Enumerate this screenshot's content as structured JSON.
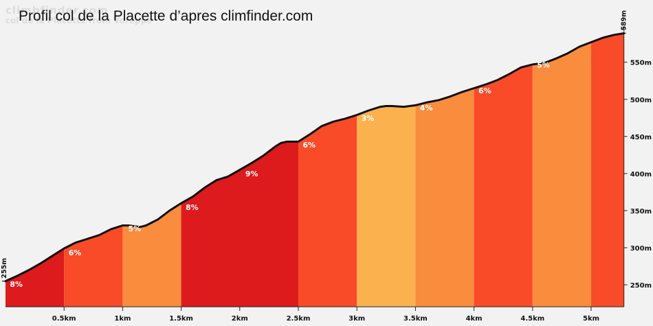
{
  "title": "Profil col de la Placette  d’apres climfinder.com",
  "watermark": {
    "line1": "climbfinder.com",
    "line2": "col de la Placette from Voreppe"
  },
  "chart_data": {
    "type": "area",
    "title": "Profil col de la Placette  d’apres climfinder.com",
    "xlabel": "",
    "ylabel": "",
    "xlim": [
      0,
      5.3
    ],
    "ylim": [
      220,
      597
    ],
    "x_ticks": [
      {
        "value": 0.5,
        "label": "0.5km"
      },
      {
        "value": 1.0,
        "label": "1km"
      },
      {
        "value": 1.5,
        "label": "1.5km"
      },
      {
        "value": 2.0,
        "label": "2km"
      },
      {
        "value": 2.5,
        "label": "2.5km"
      },
      {
        "value": 3.0,
        "label": "3km"
      },
      {
        "value": 3.5,
        "label": "3.5km"
      },
      {
        "value": 4.0,
        "label": "4km"
      },
      {
        "value": 4.5,
        "label": "4.5km"
      },
      {
        "value": 5.0,
        "label": "5km"
      }
    ],
    "y_ticks": [
      {
        "value": 250,
        "label": "250m"
      },
      {
        "value": 300,
        "label": "300m"
      },
      {
        "value": 350,
        "label": "350m"
      },
      {
        "value": 400,
        "label": "400m"
      },
      {
        "value": 450,
        "label": "450m"
      },
      {
        "value": 500,
        "label": "500m"
      },
      {
        "value": 550,
        "label": "550m"
      }
    ],
    "start_elevation": {
      "value": 255,
      "label": "255m"
    },
    "end_elevation": {
      "value": 589,
      "label": "589m"
    },
    "profile": [
      [
        0.0,
        255
      ],
      [
        0.1,
        262
      ],
      [
        0.2,
        270
      ],
      [
        0.3,
        279
      ],
      [
        0.4,
        289
      ],
      [
        0.5,
        299
      ],
      [
        0.6,
        307
      ],
      [
        0.7,
        312
      ],
      [
        0.8,
        317
      ],
      [
        0.9,
        325
      ],
      [
        1.0,
        330
      ],
      [
        1.05,
        330
      ],
      [
        1.1,
        329
      ],
      [
        1.15,
        328
      ],
      [
        1.2,
        330
      ],
      [
        1.3,
        338
      ],
      [
        1.4,
        350
      ],
      [
        1.5,
        360
      ],
      [
        1.6,
        369
      ],
      [
        1.7,
        381
      ],
      [
        1.8,
        391
      ],
      [
        1.9,
        396
      ],
      [
        2.0,
        405
      ],
      [
        2.1,
        414
      ],
      [
        2.2,
        424
      ],
      [
        2.3,
        436
      ],
      [
        2.35,
        441
      ],
      [
        2.4,
        443
      ],
      [
        2.5,
        443
      ],
      [
        2.6,
        453
      ],
      [
        2.7,
        464
      ],
      [
        2.8,
        470
      ],
      [
        2.9,
        474
      ],
      [
        3.0,
        479
      ],
      [
        3.1,
        485
      ],
      [
        3.2,
        490
      ],
      [
        3.25,
        491
      ],
      [
        3.3,
        491
      ],
      [
        3.4,
        490
      ],
      [
        3.5,
        492
      ],
      [
        3.6,
        496
      ],
      [
        3.7,
        499
      ],
      [
        3.8,
        504
      ],
      [
        3.9,
        510
      ],
      [
        4.0,
        515
      ],
      [
        4.1,
        520
      ],
      [
        4.2,
        526
      ],
      [
        4.3,
        534
      ],
      [
        4.4,
        543
      ],
      [
        4.5,
        547
      ],
      [
        4.6,
        549
      ],
      [
        4.7,
        555
      ],
      [
        4.8,
        562
      ],
      [
        4.9,
        571
      ],
      [
        5.0,
        577
      ],
      [
        5.1,
        583
      ],
      [
        5.2,
        587
      ],
      [
        5.28,
        589
      ]
    ],
    "segments": [
      {
        "start": 0.0,
        "end": 0.5,
        "grade": "8%",
        "color": "#dd1a1c"
      },
      {
        "start": 0.5,
        "end": 1.0,
        "grade": "6%",
        "color": "#f94b28"
      },
      {
        "start": 1.0,
        "end": 1.5,
        "grade": "5%",
        "color": "#fa8c3e"
      },
      {
        "start": 1.5,
        "end": 2.5,
        "grade": "8%",
        "color": "#dd1a1c"
      },
      {
        "start": 2.5,
        "end": 3.0,
        "grade": "6%",
        "color": "#f94b28"
      },
      {
        "start": 3.0,
        "end": 3.5,
        "grade": "3%",
        "color": "#fbb24e"
      },
      {
        "start": 3.5,
        "end": 4.0,
        "grade": "4%",
        "color": "#fa8c3e"
      },
      {
        "start": 4.0,
        "end": 4.5,
        "grade": "6%",
        "color": "#f94b28"
      },
      {
        "start": 4.5,
        "end": 5.0,
        "grade": "5%",
        "color": "#fa8c3e"
      },
      {
        "start": 5.0,
        "end": 5.28,
        "grade": "",
        "color": "#f94b28"
      }
    ],
    "grade_labels": [
      {
        "x": 0.02,
        "y": 247,
        "text": "8%"
      },
      {
        "x": 0.52,
        "y": 290,
        "text": "6%"
      },
      {
        "x": 1.03,
        "y": 322,
        "text": "5%"
      },
      {
        "x": 1.52,
        "y": 351,
        "text": "8%"
      },
      {
        "x": 2.03,
        "y": 396,
        "text": "9%"
      },
      {
        "x": 2.52,
        "y": 435,
        "text": "6%"
      },
      {
        "x": 3.02,
        "y": 471,
        "text": "3%"
      },
      {
        "x": 3.52,
        "y": 485,
        "text": "4%"
      },
      {
        "x": 4.02,
        "y": 508,
        "text": "6%"
      },
      {
        "x": 4.52,
        "y": 543,
        "text": "5%"
      }
    ],
    "grid": false
  }
}
